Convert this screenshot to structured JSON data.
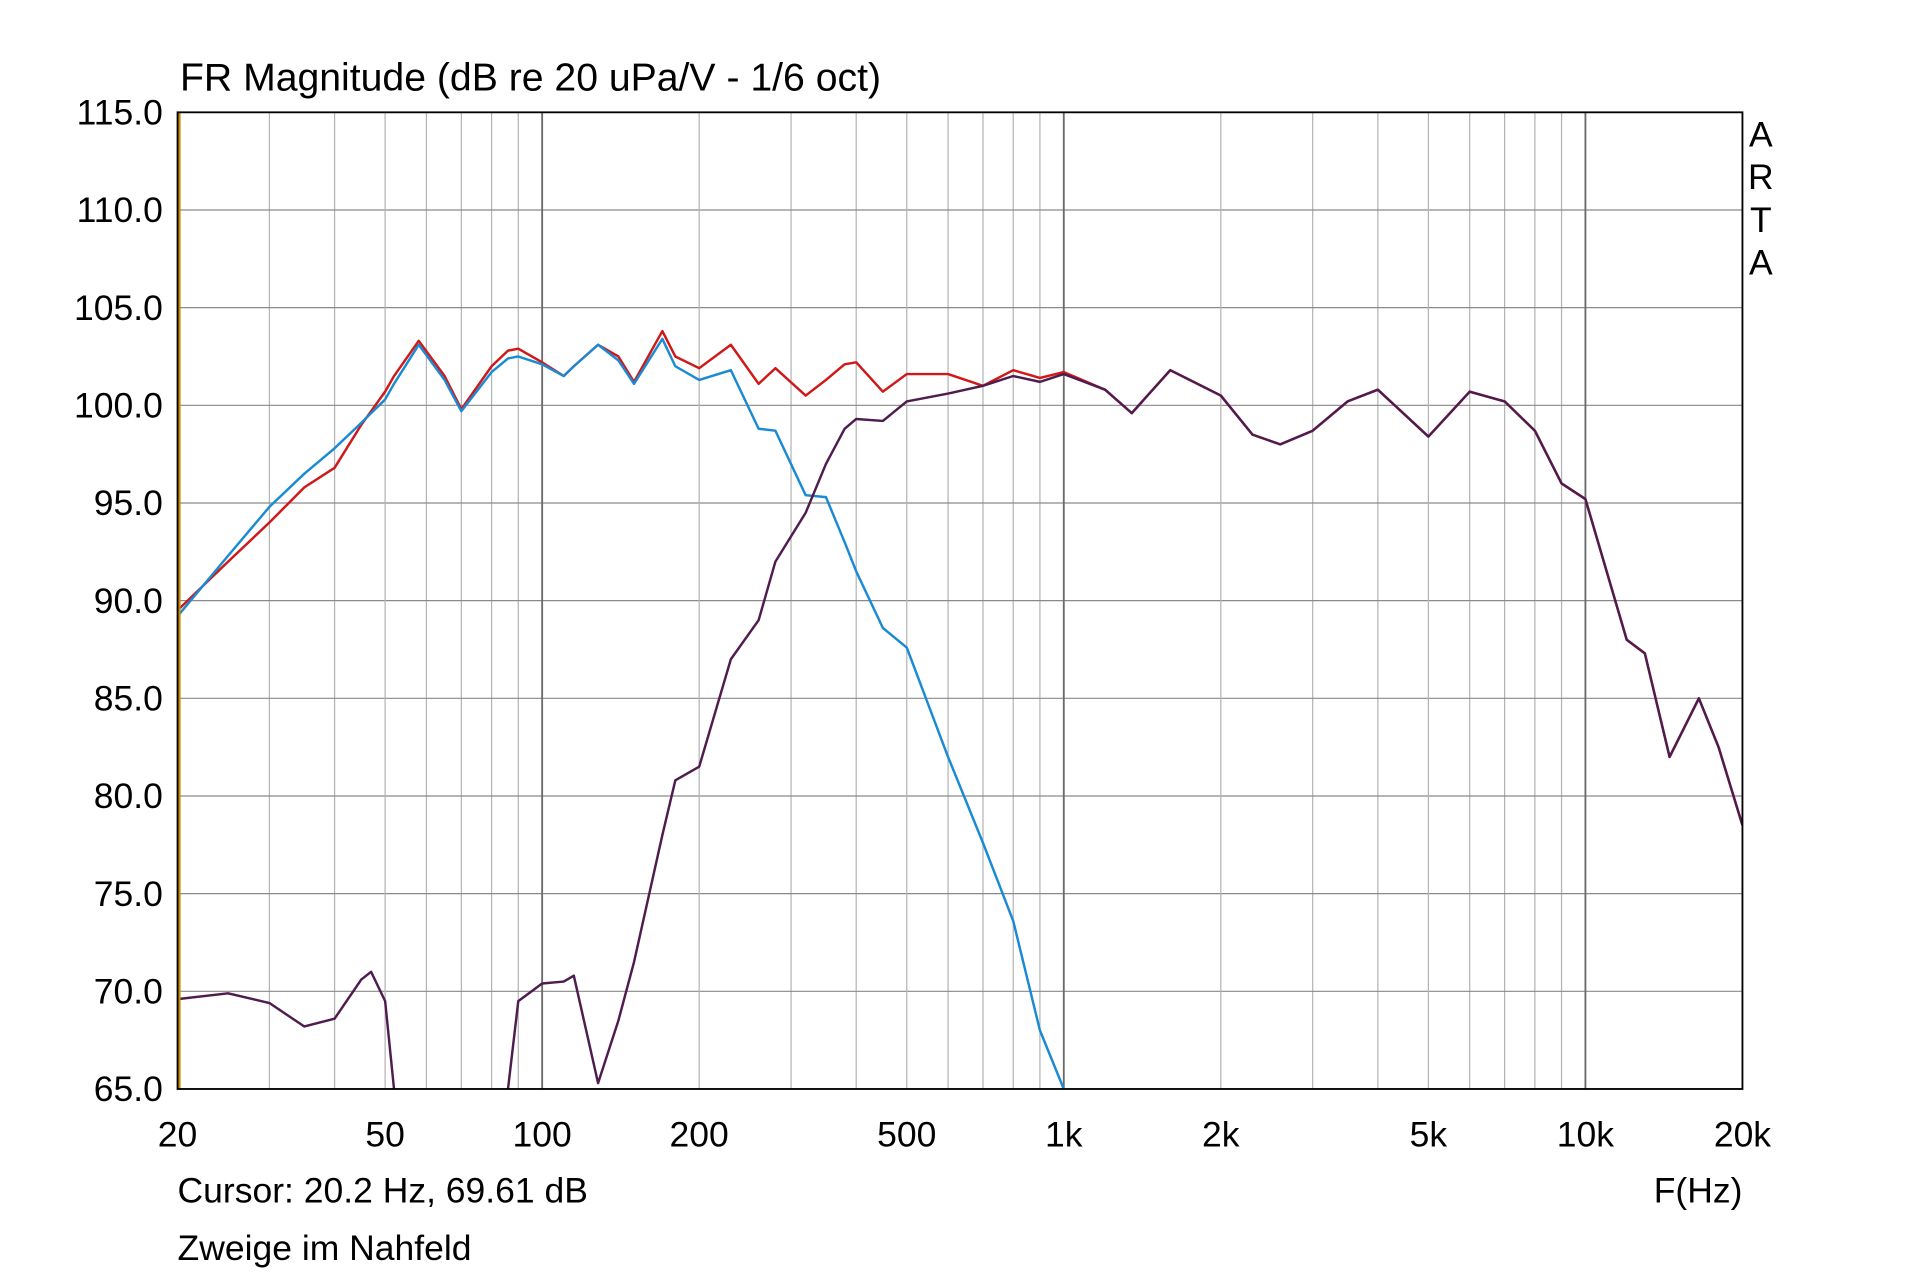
{
  "chart_data": {
    "type": "line",
    "title": "FR Magnitude (dB re 20 uPa/V - 1/6 oct)",
    "watermark": "ARTA",
    "xlabel": "F(Hz)",
    "cursor_text": "Cursor: 20.2 Hz, 69.61 dB",
    "note": "Zweige im Nahfeld",
    "xscale": "log",
    "grid": true,
    "xlim": [
      20,
      20000
    ],
    "ylim": [
      65,
      115
    ],
    "xticks": [
      20,
      50,
      100,
      200,
      500,
      {
        "value": 1000,
        "label": "1k"
      },
      {
        "value": 2000,
        "label": "2k"
      },
      {
        "value": 5000,
        "label": "5k"
      },
      {
        "value": 10000,
        "label": "10k"
      },
      {
        "value": 20000,
        "label": "20k"
      }
    ],
    "xminor_ticks": [
      30,
      40,
      60,
      70,
      80,
      90,
      300,
      400,
      600,
      700,
      800,
      900,
      3000,
      4000,
      6000,
      7000,
      8000,
      9000
    ],
    "yticks": [
      {
        "value": 65,
        "label": "65.0"
      },
      {
        "value": 70,
        "label": "70.0"
      },
      {
        "value": 75,
        "label": "75.0"
      },
      {
        "value": 80,
        "label": "80.0"
      },
      {
        "value": 85,
        "label": "85.0"
      },
      {
        "value": 90,
        "label": "90.0"
      },
      {
        "value": 95,
        "label": "95.0"
      },
      {
        "value": 100,
        "label": "100.0"
      },
      {
        "value": 105,
        "label": "105.0"
      },
      {
        "value": 110,
        "label": "110.0"
      },
      {
        "value": 115,
        "label": "115.0"
      }
    ],
    "x": [
      20,
      25,
      30,
      35,
      40,
      45,
      47,
      50,
      52,
      58,
      65,
      70,
      80,
      86,
      90,
      100,
      110,
      115,
      128,
      140,
      150,
      170,
      180,
      200,
      230,
      260,
      280,
      320,
      350,
      380,
      400,
      450,
      500,
      600,
      700,
      800,
      900,
      1000,
      1200,
      1350,
      1600,
      2000,
      2300,
      2600,
      3000,
      3500,
      4000,
      5000,
      6000,
      7000,
      8000,
      9000,
      10000,
      12000,
      13000,
      14500,
      16500,
      18000,
      20000
    ],
    "series": [
      {
        "color": "#d01818",
        "values": [
          89.5,
          92,
          94,
          95.8,
          96.8,
          99,
          99.7,
          100.7,
          101.5,
          103.3,
          101.5,
          99.8,
          102,
          102.8,
          102.9,
          102.2,
          101.5,
          102,
          103.1,
          102.5,
          101.2,
          103.8,
          102.5,
          101.9,
          103.1,
          101.1,
          101.9,
          100.5,
          101.3,
          102.1,
          102.2,
          100.7,
          101.6,
          101.6,
          101,
          101.8,
          101.4,
          101.7,
          100.8,
          99.6,
          101.8,
          100.5,
          98.5,
          98,
          98.7,
          100.2,
          100.8,
          98.4,
          100.7,
          100.2,
          98.7,
          96,
          95.2,
          88,
          87.3,
          82,
          85,
          82.5,
          78.5
        ]
      },
      {
        "color": "#1a8ad4",
        "values": [
          89.2,
          92.3,
          94.8,
          96.5,
          97.8,
          99.1,
          99.6,
          100.3,
          101.1,
          103.1,
          101.3,
          99.7,
          101.7,
          102.4,
          102.5,
          102.1,
          101.5,
          102,
          103.1,
          102.3,
          101.1,
          103.4,
          102,
          101.3,
          101.8,
          98.8,
          98.7,
          95.4,
          95.3,
          93,
          91.5,
          88.6,
          87.6,
          82,
          77.6,
          73.6,
          68,
          65,
          null,
          null,
          null,
          null,
          null,
          null,
          null,
          null,
          null,
          null,
          null,
          null,
          null,
          null,
          null,
          null,
          null,
          null,
          null,
          null,
          null
        ]
      },
      {
        "color": "#4e1c4e",
        "values": [
          69.6,
          69.9,
          69.4,
          68.2,
          68.6,
          70.6,
          71,
          69.5,
          65,
          null,
          null,
          null,
          null,
          65,
          69.5,
          70.4,
          70.5,
          70.8,
          65.3,
          68.5,
          71.5,
          78,
          80.8,
          81.5,
          87,
          89,
          92,
          94.5,
          97,
          98.8,
          99.3,
          99.2,
          100.2,
          100.6,
          101,
          101.5,
          101.2,
          101.6,
          100.8,
          99.6,
          101.8,
          100.5,
          98.5,
          98,
          98.7,
          100.2,
          100.8,
          98.4,
          100.7,
          100.2,
          98.7,
          96,
          95.2,
          88,
          87.3,
          82,
          85,
          82.5,
          78.5
        ]
      }
    ]
  }
}
